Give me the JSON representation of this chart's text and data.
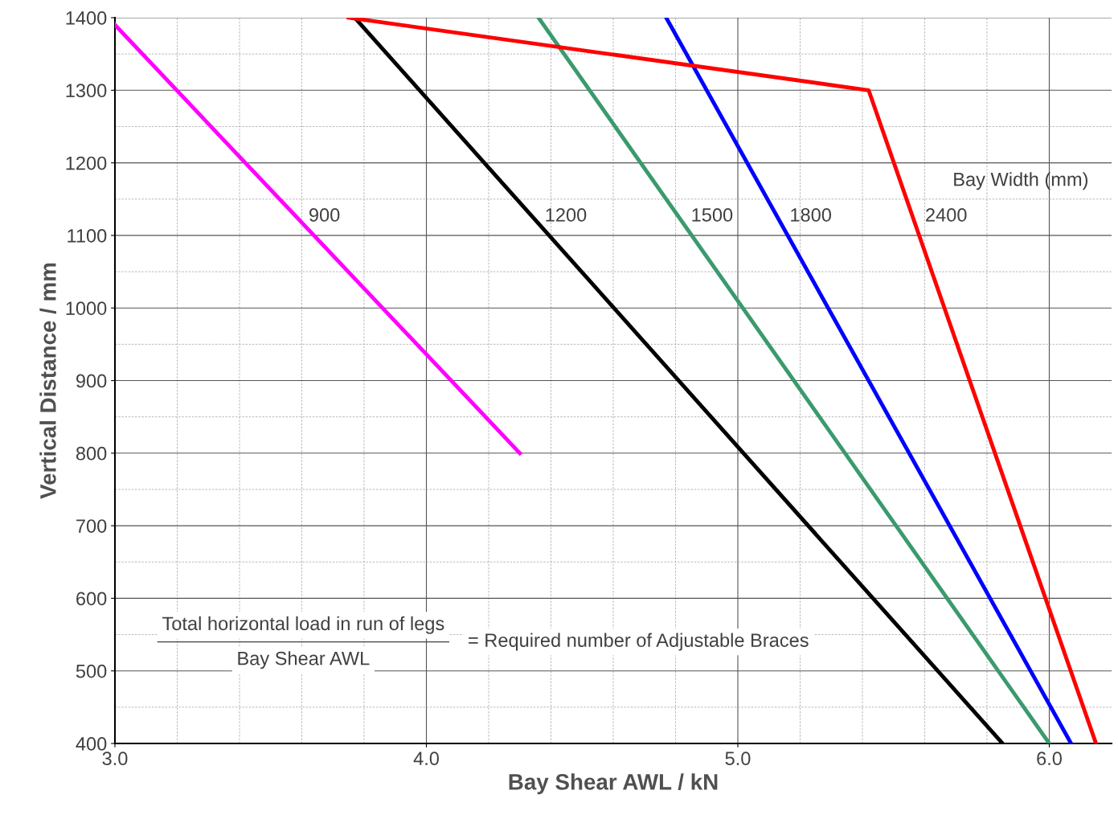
{
  "chart_data": {
    "type": "line",
    "xlabel": "Bay Shear AWL / kN",
    "ylabel": "Vertical Distance / mm",
    "legend_title": "Bay Width (mm)",
    "xlim": [
      3.0,
      6.2
    ],
    "ylim": [
      400,
      1400
    ],
    "xticks": [
      {
        "value": 3.0,
        "label": "3.0"
      },
      {
        "value": 3.2,
        "label": null
      },
      {
        "value": 3.4,
        "label": null
      },
      {
        "value": 3.6,
        "label": null
      },
      {
        "value": 3.8,
        "label": null
      },
      {
        "value": 4.0,
        "label": "4.0"
      },
      {
        "value": 4.2,
        "label": null
      },
      {
        "value": 4.4,
        "label": null
      },
      {
        "value": 4.6,
        "label": null
      },
      {
        "value": 4.8,
        "label": null
      },
      {
        "value": 5.0,
        "label": "5.0"
      },
      {
        "value": 5.2,
        "label": null
      },
      {
        "value": 5.4,
        "label": null
      },
      {
        "value": 5.6,
        "label": null
      },
      {
        "value": 5.8,
        "label": null
      },
      {
        "value": 6.0,
        "label": "6.0"
      }
    ],
    "yticks": [
      400,
      {
        "value": 450,
        "label": null
      },
      500,
      {
        "value": 550,
        "label": null
      },
      600,
      {
        "value": 650,
        "label": null
      },
      700,
      {
        "value": 750,
        "label": null
      },
      800,
      {
        "value": 850,
        "label": null
      },
      900,
      {
        "value": 950,
        "label": null
      },
      1000,
      {
        "value": 1050,
        "label": null
      },
      1100,
      {
        "value": 1150,
        "label": null
      },
      1200,
      {
        "value": 1250,
        "label": null
      },
      1300,
      {
        "value": 1350,
        "label": null
      },
      1400
    ],
    "grid": true,
    "legend": false,
    "marker": "none",
    "line_style": "solid",
    "series": [
      {
        "name": "900",
        "color": "#ff00ff",
        "x": [
          3.0,
          4.3
        ],
        "values": [
          1390,
          800
        ]
      },
      {
        "name": "1200",
        "color": "#000000",
        "x": [
          3.77,
          5.85
        ],
        "values": [
          1400,
          400
        ]
      },
      {
        "name": "1500",
        "color": "#3a9a6e",
        "x": [
          4.36,
          6.0
        ],
        "values": [
          1400,
          400
        ]
      },
      {
        "name": "1800",
        "color": "#0000ff",
        "x": [
          4.77,
          6.07
        ],
        "values": [
          1400,
          400
        ]
      },
      {
        "name": "2400",
        "color": "#ff0000",
        "x": [
          3.75,
          5.42,
          6.15
        ],
        "values": [
          1400,
          1300,
          400
        ]
      }
    ],
    "annotations": [
      "Total horizontal load in run of legs",
      "Bay Shear AWL",
      "= Required number of Adjustable Braces"
    ]
  }
}
